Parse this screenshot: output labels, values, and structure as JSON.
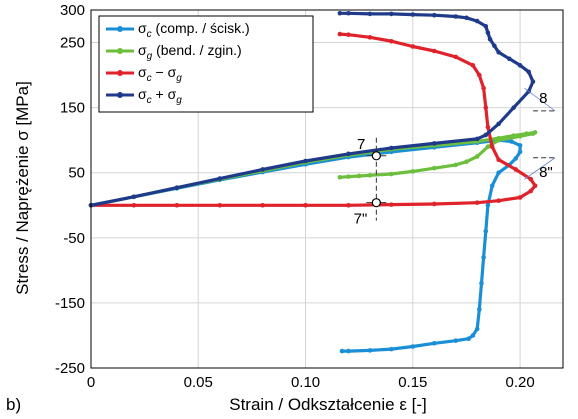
{
  "panel_label": "b)",
  "chart_data": {
    "type": "line",
    "xlabel": "Strain / Odkształcenie ε [-]",
    "ylabel": "Stress / Naprężenie σ [MPa]",
    "xlim": [
      0,
      0.22
    ],
    "ylim": [
      -250,
      300
    ],
    "xticks": [
      0,
      0.05,
      0.1,
      0.15,
      0.2
    ],
    "xtick_labels": [
      "0",
      "0.05",
      "0.10",
      "0.15",
      "0.20"
    ],
    "yticks": [
      -250,
      -150,
      -50,
      50,
      150,
      250,
      300
    ],
    "ytick_labels": [
      "-250",
      "-150",
      "-50",
      "50",
      "150",
      "250",
      "300"
    ],
    "grid": true,
    "legend_position": "top-left",
    "legend": [
      {
        "base": "σ",
        "sub": "c",
        "rest": " (comp. / ścisk.)",
        "color": "#1a8fd6"
      },
      {
        "base": "σ",
        "sub": "g",
        "rest": " (bend. / zgin.)",
        "color": "#6cbf3c"
      },
      {
        "base": "σ",
        "sub": "c",
        "rest": " − σ",
        "sub2": "g",
        "color": "#e0222b"
      },
      {
        "base": "σ",
        "sub": "c",
        "rest": " + σ",
        "sub2": "g",
        "color": "#1f3a8a"
      }
    ],
    "series": [
      {
        "color": "#1a8fd6",
        "x": [
          0,
          0.02,
          0.04,
          0.06,
          0.08,
          0.1,
          0.12,
          0.14,
          0.16,
          0.18,
          0.19,
          0.196,
          0.2,
          0.2,
          0.198,
          0.195,
          0.19,
          0.187,
          0.185,
          0.184,
          0.183,
          0.182,
          0.181,
          0.18,
          0.178,
          0.176,
          0.17,
          0.16,
          0.15,
          0.14,
          0.13,
          0.12,
          0.117
        ],
        "y": [
          0,
          13,
          26,
          39,
          51,
          63,
          74,
          82,
          89,
          96,
          100,
          98,
          92,
          82,
          72,
          62,
          50,
          30,
          0,
          -40,
          -80,
          -120,
          -160,
          -190,
          -200,
          -205,
          -208,
          -212,
          -217,
          -221,
          -223,
          -224,
          -224
        ]
      },
      {
        "color": "#6cbf3c",
        "x": [
          0,
          0.02,
          0.04,
          0.06,
          0.08,
          0.1,
          0.12,
          0.14,
          0.16,
          0.18,
          0.19,
          0.197,
          0.203,
          0.207,
          0.206,
          0.2,
          0.19,
          0.185,
          0.18,
          0.175,
          0.17,
          0.16,
          0.15,
          0.14,
          0.13,
          0.125,
          0.12,
          0.116
        ],
        "y": [
          0,
          13,
          27,
          40,
          53,
          66,
          77,
          86,
          92,
          98,
          103,
          107,
          110,
          112,
          110,
          106,
          100,
          90,
          75,
          67,
          62,
          57,
          52,
          48,
          46,
          45,
          44,
          43
        ]
      },
      {
        "color": "#e0222b",
        "x": [
          0,
          0.02,
          0.04,
          0.06,
          0.08,
          0.1,
          0.12,
          0.14,
          0.16,
          0.18,
          0.19,
          0.2,
          0.205,
          0.207,
          0.205,
          0.198,
          0.19,
          0.187,
          0.185,
          0.184,
          0.183,
          0.181,
          0.178,
          0.17,
          0.16,
          0.15,
          0.14,
          0.13,
          0.12,
          0.116
        ],
        "y": [
          0,
          0,
          0,
          0,
          0,
          0,
          0,
          1,
          2,
          4,
          7,
          12,
          22,
          30,
          40,
          55,
          70,
          90,
          120,
          150,
          180,
          200,
          215,
          228,
          237,
          244,
          252,
          258,
          262,
          263
        ]
      },
      {
        "color": "#1f3a8a",
        "x": [
          0,
          0.02,
          0.04,
          0.06,
          0.08,
          0.1,
          0.12,
          0.14,
          0.16,
          0.18,
          0.184,
          0.19,
          0.197,
          0.204,
          0.206,
          0.204,
          0.2,
          0.195,
          0.19,
          0.188,
          0.186,
          0.185,
          0.184,
          0.18,
          0.175,
          0.17,
          0.16,
          0.15,
          0.14,
          0.13,
          0.12,
          0.116
        ],
        "y": [
          0,
          13,
          27,
          41,
          55,
          68,
          79,
          88,
          95,
          102,
          108,
          125,
          150,
          175,
          190,
          205,
          215,
          225,
          235,
          245,
          255,
          265,
          275,
          283,
          288,
          290,
          292,
          293,
          294,
          294,
          295,
          295
        ]
      }
    ],
    "annotations": [
      {
        "text": "7",
        "x": 0.133,
        "y": 76
      },
      {
        "text": "7\"",
        "x": 0.133,
        "y": 4
      },
      {
        "text": "8",
        "x": 0.207,
        "y": 145
      },
      {
        "text": "8\"",
        "x": 0.207,
        "y": 73
      }
    ]
  }
}
